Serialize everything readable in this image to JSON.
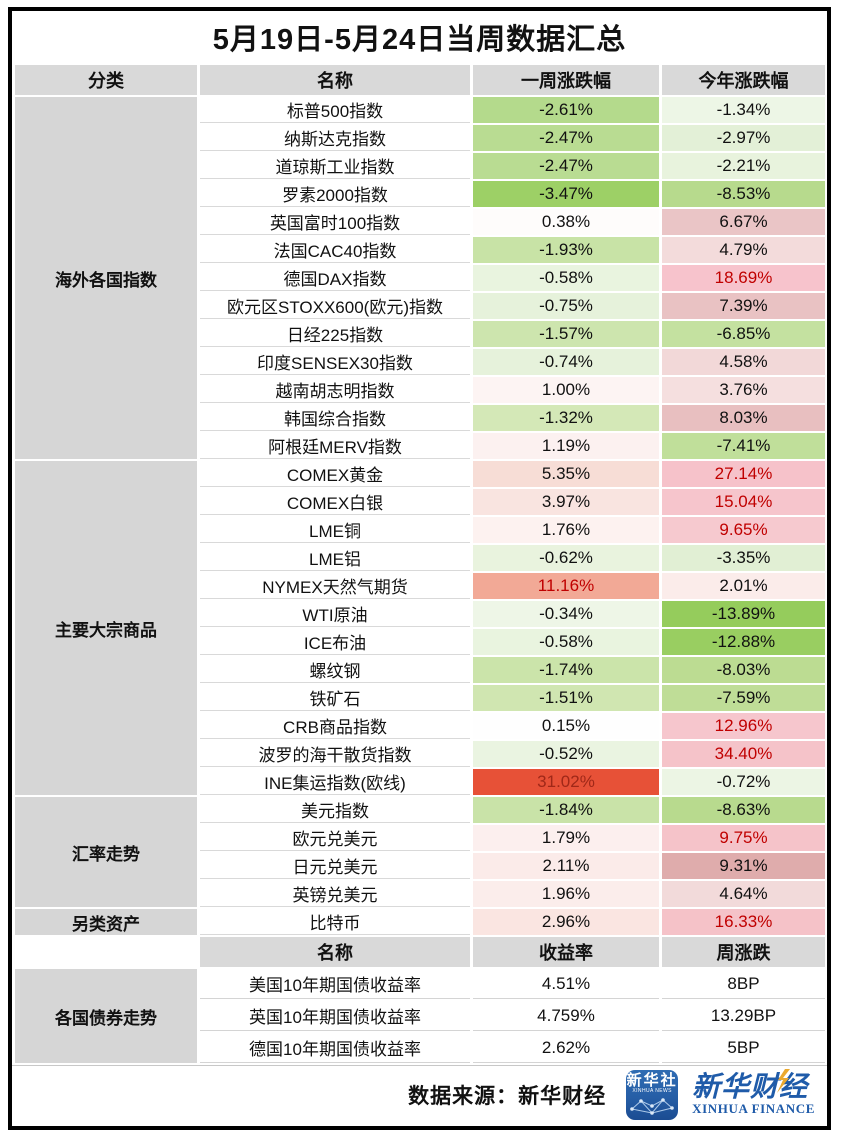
{
  "title": "5月19日-5月24日当周数据汇总",
  "table1": {
    "headers": [
      "分类",
      "名称",
      "一周涨跌幅",
      "今年涨跌幅"
    ],
    "sections": [
      {
        "category": "海外各国指数",
        "rows": [
          {
            "name": "标普500指数",
            "week": {
              "text": "-2.61%",
              "bg": "#b4da8c"
            },
            "ytd": {
              "text": "-1.34%",
              "bg": "#edf6e6"
            }
          },
          {
            "name": "纳斯达克指数",
            "week": {
              "text": "-2.47%",
              "bg": "#b9dc92"
            },
            "ytd": {
              "text": "-2.97%",
              "bg": "#e3f0d7"
            }
          },
          {
            "name": "道琼斯工业指数",
            "week": {
              "text": "-2.47%",
              "bg": "#b9dc92"
            },
            "ytd": {
              "text": "-2.21%",
              "bg": "#e8f3dd"
            }
          },
          {
            "name": "罗素2000指数",
            "week": {
              "text": "-3.47%",
              "bg": "#9dd066"
            },
            "ytd": {
              "text": "-8.53%",
              "bg": "#b7da8d"
            }
          },
          {
            "name": "英国富时100指数",
            "week": {
              "text": "0.38%",
              "bg": "#fefcfb"
            },
            "ytd": {
              "text": "6.67%",
              "bg": "#eac5c6"
            }
          },
          {
            "name": "法国CAC40指数",
            "week": {
              "text": "-1.93%",
              "bg": "#c8e3a6"
            },
            "ytd": {
              "text": "4.79%",
              "bg": "#f3dbdb"
            }
          },
          {
            "name": "德国DAX指数",
            "week": {
              "text": "-0.58%",
              "bg": "#e9f4df"
            },
            "ytd": {
              "text": "18.69%",
              "bg": "#f7c3cc",
              "fg": "#c00000"
            }
          },
          {
            "name": "欧元区STOXX600(欧元)指数",
            "week": {
              "text": "-0.75%",
              "bg": "#e6f2db"
            },
            "ytd": {
              "text": "7.39%",
              "bg": "#e9c2c3"
            }
          },
          {
            "name": "日经225指数",
            "week": {
              "text": "-1.57%",
              "bg": "#cde5ae"
            },
            "ytd": {
              "text": "-6.85%",
              "bg": "#c4e1a0"
            }
          },
          {
            "name": "印度SENSEX30指数",
            "week": {
              "text": "-0.74%",
              "bg": "#e6f2db"
            },
            "ytd": {
              "text": "4.58%",
              "bg": "#f2d8d8"
            }
          },
          {
            "name": "越南胡志明指数",
            "week": {
              "text": "1.00%",
              "bg": "#fdf4f3"
            },
            "ytd": {
              "text": "3.76%",
              "bg": "#f5dfdf"
            }
          },
          {
            "name": "韩国综合指数",
            "week": {
              "text": "-1.32%",
              "bg": "#d4e8b7"
            },
            "ytd": {
              "text": "8.03%",
              "bg": "#e8bfc0"
            }
          },
          {
            "name": "阿根廷MERV指数",
            "week": {
              "text": "1.19%",
              "bg": "#fcf1f0"
            },
            "ytd": {
              "text": "-7.41%",
              "bg": "#c0df9a"
            }
          }
        ]
      },
      {
        "category": "主要大宗商品",
        "rows": [
          {
            "name": "COMEX黄金",
            "week": {
              "text": "5.35%",
              "bg": "#f7ddd6"
            },
            "ytd": {
              "text": "27.14%",
              "bg": "#f6c2ca",
              "fg": "#c00000"
            }
          },
          {
            "name": "COMEX白银",
            "week": {
              "text": "3.97%",
              "bg": "#f9e4e0"
            },
            "ytd": {
              "text": "15.04%",
              "bg": "#f6c5cc",
              "fg": "#c00000"
            }
          },
          {
            "name": "LME铜",
            "week": {
              "text": "1.76%",
              "bg": "#fdf2f0"
            },
            "ytd": {
              "text": "9.65%",
              "bg": "#f6c9cf",
              "fg": "#c00000"
            }
          },
          {
            "name": "LME铝",
            "week": {
              "text": "-0.62%",
              "bg": "#e9f3de"
            },
            "ytd": {
              "text": "-3.35%",
              "bg": "#e1efd4"
            }
          },
          {
            "name": "NYMEX天然气期货",
            "week": {
              "text": "11.16%",
              "bg": "#f2a996",
              "fg": "#c00000"
            },
            "ytd": {
              "text": "2.01%",
              "bg": "#fbecea"
            }
          },
          {
            "name": "WTI原油",
            "week": {
              "text": "-0.34%",
              "bg": "#eef6e7"
            },
            "ytd": {
              "text": "-13.89%",
              "bg": "#95cc5c"
            }
          },
          {
            "name": "ICE布油",
            "week": {
              "text": "-0.58%",
              "bg": "#e9f4df"
            },
            "ytd": {
              "text": "-12.88%",
              "bg": "#99ce61"
            }
          },
          {
            "name": "螺纹钢",
            "week": {
              "text": "-1.74%",
              "bg": "#cbe4aa"
            },
            "ytd": {
              "text": "-8.03%",
              "bg": "#bcdc92"
            }
          },
          {
            "name": "铁矿石",
            "week": {
              "text": "-1.51%",
              "bg": "#d0e6b1"
            },
            "ytd": {
              "text": "-7.59%",
              "bg": "#bfdd97"
            }
          },
          {
            "name": "CRB商品指数",
            "week": {
              "text": "0.15%",
              "bg": "#fefefe"
            },
            "ytd": {
              "text": "12.96%",
              "bg": "#f6c6cd",
              "fg": "#c00000"
            }
          },
          {
            "name": "波罗的海干散货指数",
            "week": {
              "text": "-0.52%",
              "bg": "#eaf4e1"
            },
            "ytd": {
              "text": "34.40%",
              "bg": "#f5c3c9",
              "fg": "#c00000"
            }
          },
          {
            "name": "INE集运指数(欧线)",
            "week": {
              "text": "31.02%",
              "bg": "#e75137",
              "fg": "#a02818"
            },
            "ytd": {
              "text": "-0.72%",
              "bg": "#ecf5e4"
            }
          }
        ]
      },
      {
        "category": "汇率走势",
        "rows": [
          {
            "name": "美元指数",
            "week": {
              "text": "-1.84%",
              "bg": "#c9e3a8"
            },
            "ytd": {
              "text": "-8.63%",
              "bg": "#b8da8e"
            }
          },
          {
            "name": "欧元兑美元",
            "week": {
              "text": "1.79%",
              "bg": "#fcefee"
            },
            "ytd": {
              "text": "9.75%",
              "bg": "#f5c3c9",
              "fg": "#c00000"
            }
          },
          {
            "name": "日元兑美元",
            "week": {
              "text": "2.11%",
              "bg": "#fbebe9"
            },
            "ytd": {
              "text": "9.31%",
              "bg": "#dfacac"
            }
          },
          {
            "name": "英镑兑美元",
            "week": {
              "text": "1.96%",
              "bg": "#fbedeb"
            },
            "ytd": {
              "text": "4.64%",
              "bg": "#f2dada"
            }
          }
        ]
      },
      {
        "category": "另类资产",
        "rows": [
          {
            "name": "比特币",
            "week": {
              "text": "2.96%",
              "bg": "#fae5e1"
            },
            "ytd": {
              "text": "16.33%",
              "bg": "#f5c2c8",
              "fg": "#c00000"
            }
          }
        ]
      }
    ]
  },
  "table2": {
    "headers": [
      "名称",
      "收益率",
      "周涨跌"
    ],
    "sections": [
      {
        "category": "各国债券走势",
        "rows": [
          {
            "name": "美国10年期国债收益率",
            "yield": {
              "text": "4.51%"
            },
            "change": {
              "text": "8BP"
            }
          },
          {
            "name": "英国10年期国债收益率",
            "yield": {
              "text": "4.759%"
            },
            "change": {
              "text": "13.29BP"
            }
          },
          {
            "name": "德国10年期国债收益率",
            "yield": {
              "text": "2.62%"
            },
            "change": {
              "text": "5BP"
            }
          }
        ]
      }
    ]
  },
  "footer": {
    "source_label": "数据来源：新华财经",
    "news_logo": {
      "cn": "新华社",
      "en": "XINHUA NEWS"
    },
    "finance_logo": {
      "cn": "新华财经",
      "en": "XINHUA FINANCE"
    }
  },
  "colors": {
    "header_bg": "#d9d9d9",
    "category_bg": "#d6d6d6",
    "up_text_red": "#c00000",
    "strong_up_bg": "#e75137",
    "strong_down_bg": "#95cc5c",
    "logo_blue": "#1f5ba9",
    "logo_gold": "#eaa92f"
  }
}
